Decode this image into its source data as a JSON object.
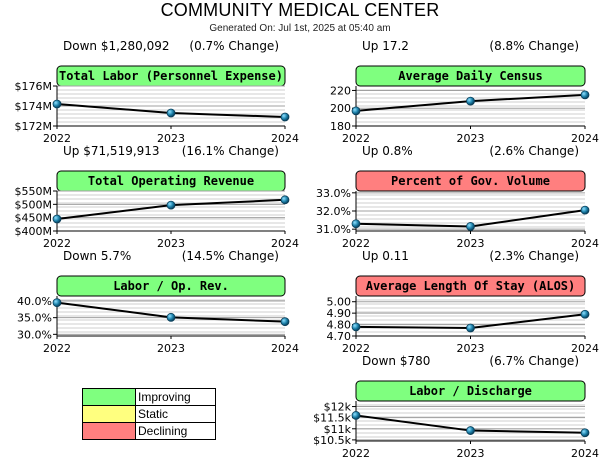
{
  "header": {
    "title": "COMMUNITY MEDICAL CENTER",
    "generated": "Generated On: Jul 1st, 2025 at 05:40 am"
  },
  "colors": {
    "improving": "#7fff7f",
    "static": "#ffff7f",
    "declining": "#ff7f7f",
    "line": "#000000",
    "point": "#1a7fa8"
  },
  "legend": [
    {
      "label": "Improving",
      "status": "improving"
    },
    {
      "label": "Static",
      "status": "static"
    },
    {
      "label": "Declining",
      "status": "declining"
    }
  ],
  "chart_data": [
    {
      "type": "line",
      "title": "Total Labor (Personnel Expense)",
      "status": "improving",
      "change_text": "Down $1,280,092",
      "change_pct": "(0.7% Change)",
      "x": [
        "2022",
        "2023",
        "2024"
      ],
      "values": [
        174.2,
        173.3,
        172.9
      ],
      "ylim": [
        172,
        176
      ],
      "yticks": [
        172,
        174,
        176
      ],
      "ytick_labels": [
        "$172M",
        "$174M",
        "$176M"
      ],
      "grid": true
    },
    {
      "type": "line",
      "title": "Average Daily Census",
      "status": "improving",
      "change_text": "Up 17.2",
      "change_pct": "(8.8% Change)",
      "x": [
        "2022",
        "2023",
        "2024"
      ],
      "values": [
        197,
        208,
        215
      ],
      "ylim": [
        180,
        225
      ],
      "yticks": [
        180,
        200,
        220
      ],
      "ytick_labels": [
        "180",
        "200",
        "220"
      ],
      "grid": true
    },
    {
      "type": "line",
      "title": "Total Operating Revenue",
      "status": "improving",
      "change_text": "Up $71,519,913",
      "change_pct": "(16.1% Change)",
      "x": [
        "2022",
        "2023",
        "2024"
      ],
      "values": [
        445,
        497,
        517
      ],
      "ylim": [
        400,
        550
      ],
      "yticks": [
        400,
        450,
        500,
        550
      ],
      "ytick_labels": [
        "$400M",
        "$450M",
        "$500M",
        "$550M"
      ],
      "grid": true
    },
    {
      "type": "line",
      "title": "Percent of Gov. Volume",
      "status": "declining",
      "change_text": "Up 0.8%",
      "change_pct": "(2.6% Change)",
      "x": [
        "2022",
        "2023",
        "2024"
      ],
      "values": [
        31.3,
        31.15,
        32.05
      ],
      "ylim": [
        30.9,
        33.1
      ],
      "yticks": [
        31,
        32,
        33
      ],
      "ytick_labels": [
        "31.0%",
        "32.0%",
        "33.0%"
      ],
      "grid": true
    },
    {
      "type": "line",
      "title": "Labor / Op. Rev.",
      "status": "improving",
      "change_text": "Down 5.7%",
      "change_pct": "(14.5% Change)",
      "x": [
        "2022",
        "2023",
        "2024"
      ],
      "values": [
        39.5,
        35.1,
        33.8
      ],
      "ylim": [
        29.5,
        41.5
      ],
      "yticks": [
        30,
        35,
        40
      ],
      "ytick_labels": [
        "30.0%",
        "35.0%",
        "40.0%"
      ],
      "grid": true
    },
    {
      "type": "line",
      "title": "Average Length Of Stay (ALOS)",
      "status": "declining",
      "change_text": "Up 0.11",
      "change_pct": "(2.3% Change)",
      "x": [
        "2022",
        "2023",
        "2024"
      ],
      "values": [
        4.78,
        4.77,
        4.89
      ],
      "ylim": [
        4.7,
        5.05
      ],
      "yticks": [
        4.7,
        4.8,
        4.9,
        5.0
      ],
      "ytick_labels": [
        "4.70",
        "4.80",
        "4.90",
        "5.00"
      ],
      "grid": true
    },
    {
      "type": "line",
      "title": "Labor / Discharge",
      "status": "improving",
      "change_text": "Down $780",
      "change_pct": "(6.7% Change)",
      "x": [
        "2022",
        "2023",
        "2024"
      ],
      "values": [
        11600,
        10920,
        10820
      ],
      "ylim": [
        10450,
        12250
      ],
      "yticks": [
        10500,
        11000,
        11500,
        12000
      ],
      "ytick_labels": [
        "$10.5k",
        "$11k",
        "$11.5k",
        "$12k"
      ],
      "grid": true
    }
  ]
}
